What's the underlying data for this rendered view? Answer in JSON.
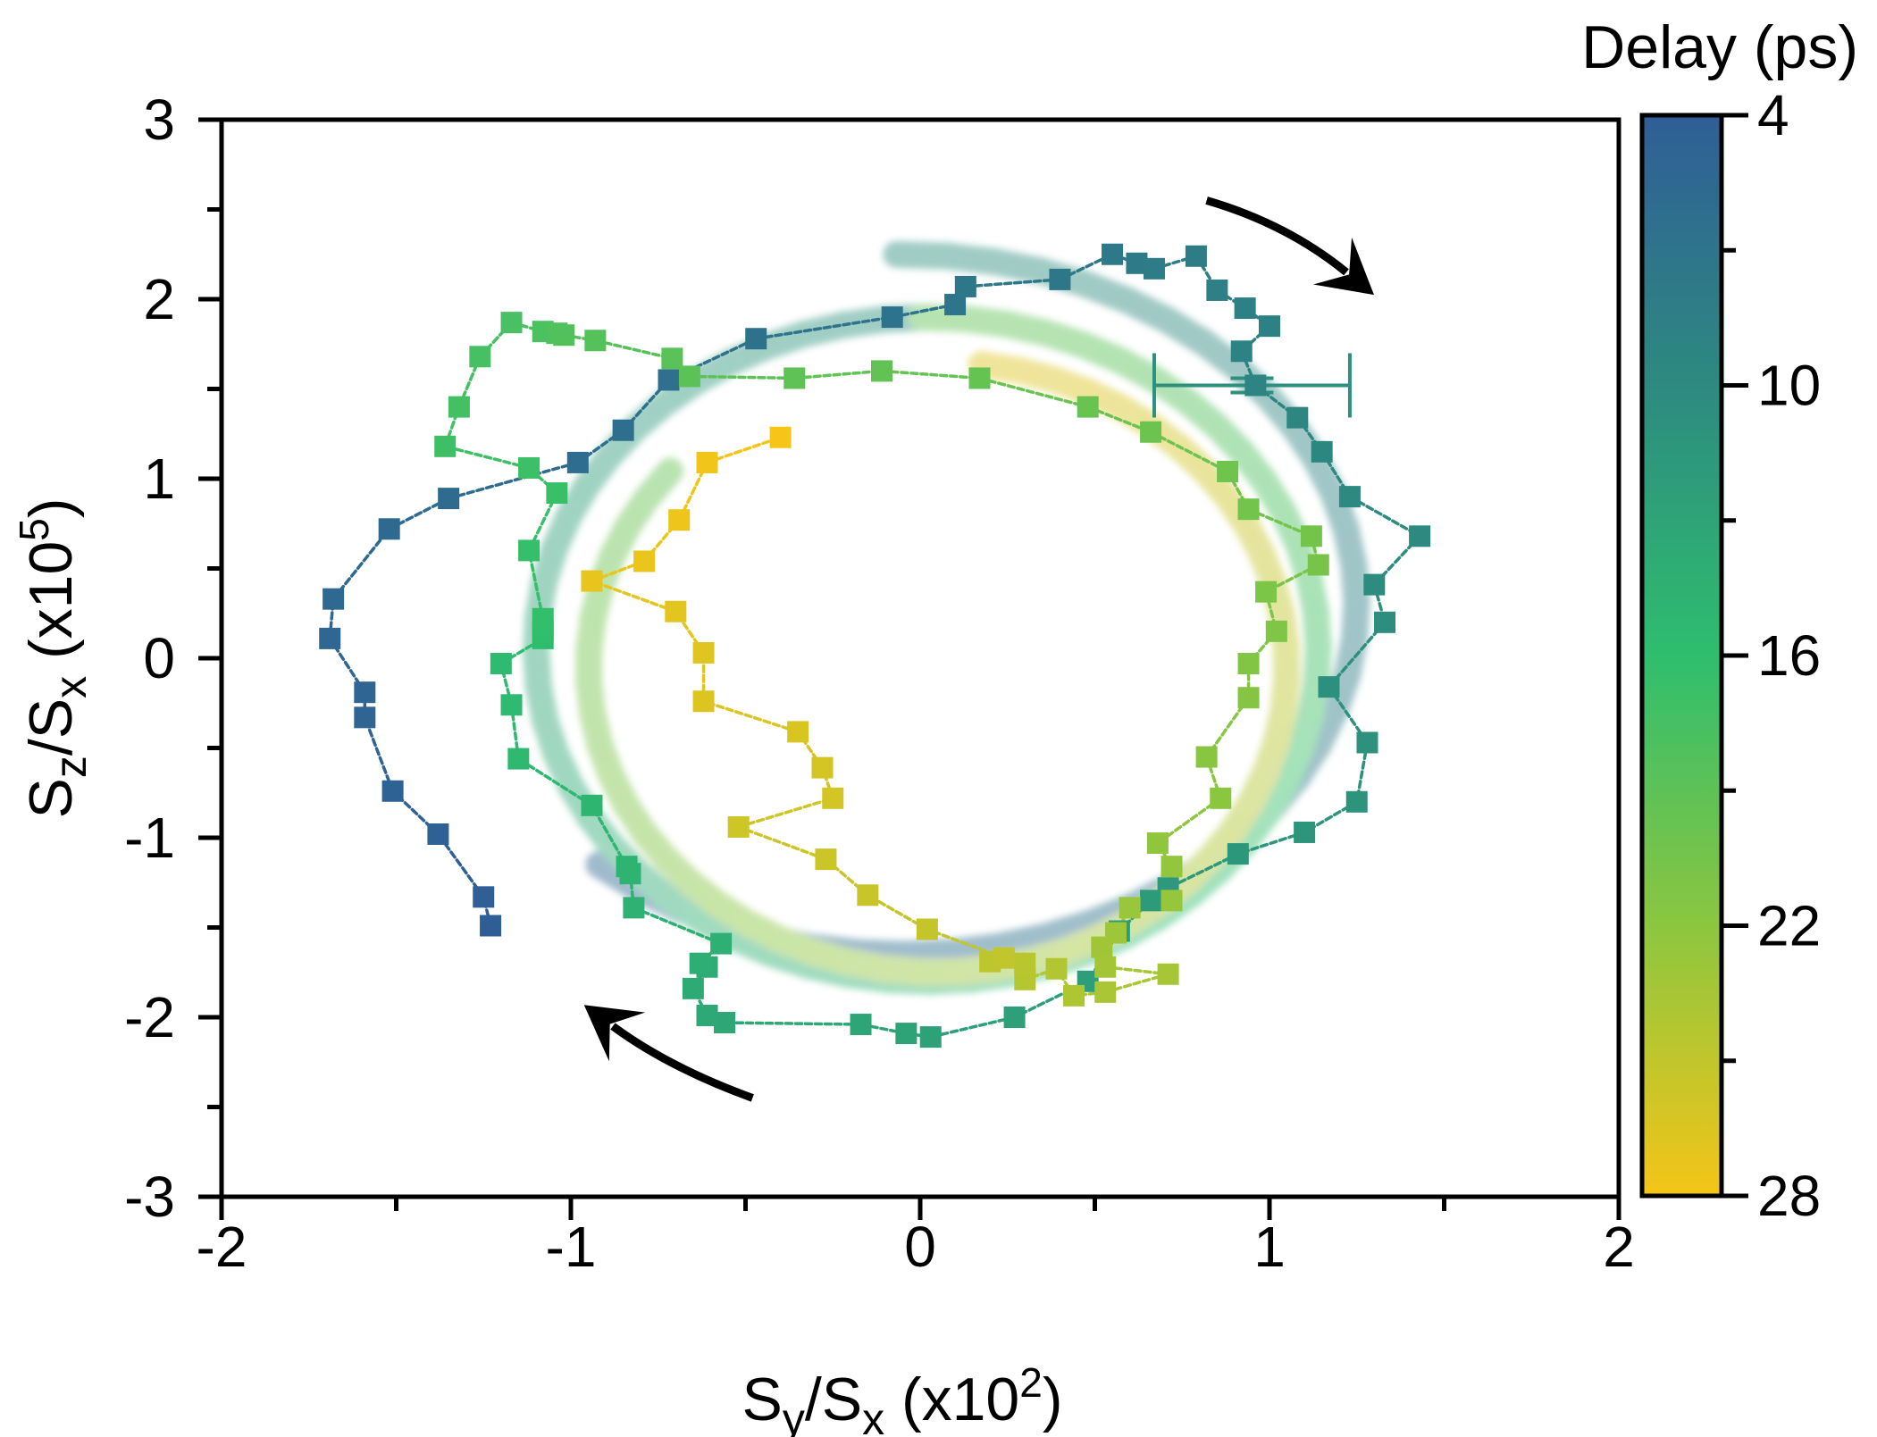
{
  "chart_data": {
    "type": "scatter",
    "xlabel": {
      "base": "S",
      "sub1": "y",
      "mid": "/S",
      "sub2": "x",
      "tail": " (x10",
      "sup": "2",
      "close": ")"
    },
    "ylabel": {
      "base": "S",
      "sub1": "z",
      "mid": "/S",
      "sub2": "x",
      "tail": " (x10",
      "sup": "5",
      "close": ")"
    },
    "xlim": [
      -2,
      2
    ],
    "ylim": [
      -3,
      3
    ],
    "xticks": [
      -2,
      -1,
      0,
      1,
      2
    ],
    "xtick_labels": [
      "-2",
      "-1",
      "0",
      "1",
      "2"
    ],
    "yticks": [
      3,
      2,
      1,
      0,
      -1,
      -2,
      -3
    ],
    "ytick_labels": [
      "3",
      "2",
      "1",
      "0",
      "-1",
      "-2",
      "-3"
    ],
    "colorbar": {
      "title": "Delay (ps)",
      "range": [
        4,
        28
      ],
      "ticks": [
        4,
        10,
        16,
        22,
        28
      ],
      "tick_labels": [
        "4",
        "10",
        "16",
        "22",
        "28"
      ],
      "colors": [
        "#2f5e96",
        "#2d8a80",
        "#2ebe6e",
        "#8cc63f",
        "#f5c518"
      ]
    },
    "error_bar": {
      "x": 0.95,
      "y": 1.52,
      "xerr": 0.28,
      "yerr": 0.04
    },
    "guide_ellipses": [
      {
        "cx": -0.05,
        "cy": 0.3,
        "rx": 1.3,
        "ry": 1.95,
        "start_deg": 228,
        "end_deg": 450
      },
      {
        "cx": 0.02,
        "cy": 0.05,
        "rx": 1.12,
        "ry": 1.85,
        "start_deg": 90,
        "end_deg": 450
      },
      {
        "cx": 0.05,
        "cy": -0.05,
        "rx": 1.0,
        "ry": 1.7,
        "start_deg": 140,
        "end_deg": 442
      }
    ],
    "arrows": [
      {
        "name": "clockwise-arrow-top-right",
        "points": [
          [
            0.82,
            2.55
          ],
          [
            1.05,
            2.42
          ],
          [
            1.22,
            2.15
          ]
        ]
      },
      {
        "name": "clockwise-arrow-bottom-left",
        "points": [
          [
            -0.48,
            -2.45
          ],
          [
            -0.72,
            -2.28
          ],
          [
            -0.88,
            -2.05
          ]
        ]
      }
    ],
    "series": [
      {
        "name": "trajectory",
        "points": [
          [
            -1.23,
            -1.49
          ],
          [
            -1.25,
            -1.33
          ],
          [
            -1.38,
            -0.98
          ],
          [
            -1.51,
            -0.74
          ],
          [
            -1.59,
            -0.33
          ],
          [
            -1.59,
            -0.19
          ],
          [
            -1.69,
            0.11
          ],
          [
            -1.68,
            0.33
          ],
          [
            -1.52,
            0.72
          ],
          [
            -1.35,
            0.89
          ],
          [
            -0.98,
            1.09
          ],
          [
            -0.85,
            1.27
          ],
          [
            -0.72,
            1.55
          ],
          [
            -0.47,
            1.78
          ],
          [
            -0.08,
            1.9
          ],
          [
            0.1,
            1.97
          ],
          [
            0.13,
            2.07
          ],
          [
            0.4,
            2.11
          ],
          [
            0.55,
            2.25
          ],
          [
            0.62,
            2.2
          ],
          [
            0.67,
            2.17
          ],
          [
            0.79,
            2.24
          ],
          [
            0.85,
            2.05
          ],
          [
            0.93,
            1.95
          ],
          [
            1.0,
            1.85
          ],
          [
            0.92,
            1.71
          ],
          [
            0.96,
            1.52
          ],
          [
            1.08,
            1.34
          ],
          [
            1.15,
            1.15
          ],
          [
            1.23,
            0.9
          ],
          [
            1.43,
            0.68
          ],
          [
            1.3,
            0.41
          ],
          [
            1.33,
            0.2
          ],
          [
            1.17,
            -0.16
          ],
          [
            1.28,
            -0.47
          ],
          [
            1.25,
            -0.8
          ],
          [
            1.1,
            -0.97
          ],
          [
            0.91,
            -1.09
          ],
          [
            0.71,
            -1.28
          ],
          [
            0.66,
            -1.35
          ],
          [
            0.57,
            -1.52
          ],
          [
            0.48,
            -1.8
          ],
          [
            0.27,
            -2.0
          ],
          [
            0.03,
            -2.11
          ],
          [
            -0.04,
            -2.09
          ],
          [
            -0.17,
            -2.04
          ],
          [
            -0.56,
            -2.03
          ],
          [
            -0.61,
            -1.99
          ],
          [
            -0.65,
            -1.84
          ],
          [
            -0.61,
            -1.72
          ],
          [
            -0.63,
            -1.7
          ],
          [
            -0.57,
            -1.59
          ],
          [
            -0.82,
            -1.39
          ],
          [
            -0.83,
            -1.2
          ],
          [
            -0.84,
            -1.16
          ],
          [
            -0.94,
            -0.82
          ],
          [
            -1.15,
            -0.56
          ],
          [
            -1.17,
            -0.26
          ],
          [
            -1.2,
            -0.03
          ],
          [
            -1.08,
            0.11
          ],
          [
            -1.08,
            0.15
          ],
          [
            -1.08,
            0.22
          ],
          [
            -1.12,
            0.6
          ],
          [
            -1.04,
            0.92
          ],
          [
            -1.12,
            1.06
          ],
          [
            -1.36,
            1.18
          ],
          [
            -1.32,
            1.4
          ],
          [
            -1.26,
            1.68
          ],
          [
            -1.17,
            1.87
          ],
          [
            -1.08,
            1.82
          ],
          [
            -1.04,
            1.81
          ],
          [
            -1.02,
            1.8
          ],
          [
            -0.93,
            1.77
          ],
          [
            -0.71,
            1.67
          ],
          [
            -0.66,
            1.57
          ],
          [
            -0.36,
            1.56
          ],
          [
            -0.11,
            1.6
          ],
          [
            0.17,
            1.56
          ],
          [
            0.48,
            1.4
          ],
          [
            0.66,
            1.26
          ],
          [
            0.88,
            1.04
          ],
          [
            0.94,
            0.83
          ],
          [
            1.12,
            0.68
          ],
          [
            1.14,
            0.52
          ],
          [
            0.99,
            0.37
          ],
          [
            1.02,
            0.15
          ],
          [
            0.94,
            -0.03
          ],
          [
            0.94,
            -0.22
          ],
          [
            0.82,
            -0.55
          ],
          [
            0.86,
            -0.78
          ],
          [
            0.68,
            -1.03
          ],
          [
            0.72,
            -1.16
          ],
          [
            0.72,
            -1.35
          ],
          [
            0.6,
            -1.39
          ],
          [
            0.56,
            -1.53
          ],
          [
            0.52,
            -1.61
          ],
          [
            0.53,
            -1.72
          ],
          [
            0.71,
            -1.76
          ],
          [
            0.53,
            -1.86
          ],
          [
            0.44,
            -1.88
          ],
          [
            0.39,
            -1.73
          ],
          [
            0.3,
            -1.79
          ],
          [
            0.3,
            -1.7
          ],
          [
            0.2,
            -1.69
          ],
          [
            0.24,
            -1.67
          ],
          [
            0.02,
            -1.51
          ],
          [
            -0.15,
            -1.32
          ],
          [
            -0.27,
            -1.12
          ],
          [
            -0.52,
            -0.94
          ],
          [
            -0.25,
            -0.78
          ],
          [
            -0.28,
            -0.61
          ],
          [
            -0.35,
            -0.41
          ],
          [
            -0.62,
            -0.24
          ],
          [
            -0.62,
            0.03
          ],
          [
            -0.7,
            0.26
          ],
          [
            -0.94,
            0.43
          ],
          [
            -0.79,
            0.54
          ],
          [
            -0.69,
            0.77
          ],
          [
            -0.61,
            1.09
          ],
          [
            -0.4,
            1.23
          ]
        ]
      }
    ]
  }
}
